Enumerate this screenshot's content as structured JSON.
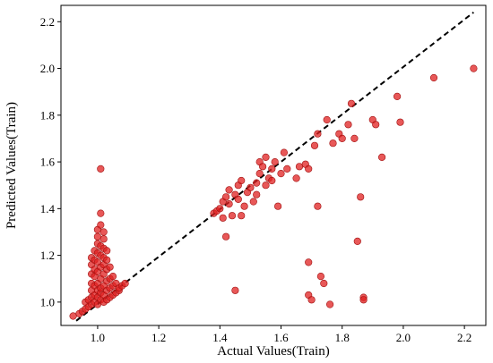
{
  "chart_data": {
    "type": "scatter",
    "xlabel": "Actual Values(Train)",
    "ylabel": "Predicted Values(Train)",
    "xlim": [
      0.88,
      2.27
    ],
    "ylim": [
      0.9,
      2.27
    ],
    "x_ticks": [
      1.0,
      1.2,
      1.4,
      1.6,
      1.8,
      2.0,
      2.2
    ],
    "y_ticks": [
      1.0,
      1.2,
      1.4,
      1.6,
      1.8,
      2.0,
      2.2
    ],
    "grid": false,
    "marker_color": "#e02020",
    "marker_edge_color": "#a01010",
    "reference_line": {
      "style": "dashed",
      "color": "#000000",
      "x": [
        0.93,
        2.23
      ],
      "y": [
        0.92,
        2.24
      ]
    },
    "series": [
      {
        "points": [
          [
            0.92,
            0.94
          ],
          [
            0.94,
            0.95
          ],
          [
            0.95,
            0.96
          ],
          [
            0.96,
            0.97
          ],
          [
            0.96,
            1.0
          ],
          [
            0.97,
            0.98
          ],
          [
            0.97,
            1.01
          ],
          [
            0.98,
            0.99
          ],
          [
            0.98,
            1.02
          ],
          [
            0.98,
            1.05
          ],
          [
            0.98,
            1.08
          ],
          [
            0.98,
            1.12
          ],
          [
            0.98,
            1.16
          ],
          [
            0.98,
            1.19
          ],
          [
            0.99,
            1.0
          ],
          [
            0.99,
            1.03
          ],
          [
            0.99,
            1.07
          ],
          [
            0.99,
            1.11
          ],
          [
            0.99,
            1.14
          ],
          [
            0.99,
            1.18
          ],
          [
            0.99,
            1.22
          ],
          [
            1.0,
            0.99
          ],
          [
            1.0,
            1.02
          ],
          [
            1.0,
            1.05
          ],
          [
            1.0,
            1.08
          ],
          [
            1.0,
            1.13
          ],
          [
            1.0,
            1.17
          ],
          [
            1.0,
            1.21
          ],
          [
            1.0,
            1.25
          ],
          [
            1.0,
            1.28
          ],
          [
            1.0,
            1.31
          ],
          [
            1.01,
            1.01
          ],
          [
            1.01,
            1.04
          ],
          [
            1.01,
            1.06
          ],
          [
            1.01,
            1.1
          ],
          [
            1.01,
            1.15
          ],
          [
            1.01,
            1.2
          ],
          [
            1.01,
            1.24
          ],
          [
            1.01,
            1.33
          ],
          [
            1.01,
            1.38
          ],
          [
            1.01,
            1.57
          ],
          [
            1.02,
            1.0
          ],
          [
            1.02,
            1.03
          ],
          [
            1.02,
            1.07
          ],
          [
            1.02,
            1.12
          ],
          [
            1.02,
            1.16
          ],
          [
            1.02,
            1.19
          ],
          [
            1.02,
            1.23
          ],
          [
            1.02,
            1.27
          ],
          [
            1.02,
            1.3
          ],
          [
            1.03,
            1.01
          ],
          [
            1.03,
            1.05
          ],
          [
            1.03,
            1.09
          ],
          [
            1.03,
            1.14
          ],
          [
            1.03,
            1.18
          ],
          [
            1.03,
            1.22
          ],
          [
            1.04,
            1.02
          ],
          [
            1.04,
            1.06
          ],
          [
            1.04,
            1.1
          ],
          [
            1.04,
            1.15
          ],
          [
            1.05,
            1.03
          ],
          [
            1.05,
            1.07
          ],
          [
            1.05,
            1.11
          ],
          [
            1.06,
            1.04
          ],
          [
            1.06,
            1.08
          ],
          [
            1.07,
            1.05
          ],
          [
            1.07,
            1.06
          ],
          [
            1.08,
            1.07
          ],
          [
            1.09,
            1.08
          ],
          [
            1.38,
            1.38
          ],
          [
            1.39,
            1.39
          ],
          [
            1.4,
            1.4
          ],
          [
            1.41,
            1.43
          ],
          [
            1.41,
            1.36
          ],
          [
            1.42,
            1.45
          ],
          [
            1.42,
            1.28
          ],
          [
            1.43,
            1.48
          ],
          [
            1.43,
            1.42
          ],
          [
            1.44,
            1.37
          ],
          [
            1.45,
            1.46
          ],
          [
            1.45,
            1.05
          ],
          [
            1.46,
            1.44
          ],
          [
            1.46,
            1.5
          ],
          [
            1.47,
            1.52
          ],
          [
            1.47,
            1.37
          ],
          [
            1.48,
            1.41
          ],
          [
            1.49,
            1.47
          ],
          [
            1.5,
            1.49
          ],
          [
            1.51,
            1.43
          ],
          [
            1.52,
            1.51
          ],
          [
            1.52,
            1.46
          ],
          [
            1.53,
            1.6
          ],
          [
            1.53,
            1.55
          ],
          [
            1.54,
            1.58
          ],
          [
            1.55,
            1.5
          ],
          [
            1.55,
            1.62
          ],
          [
            1.56,
            1.53
          ],
          [
            1.57,
            1.57
          ],
          [
            1.57,
            1.52
          ],
          [
            1.58,
            1.6
          ],
          [
            1.59,
            1.41
          ],
          [
            1.6,
            1.55
          ],
          [
            1.61,
            1.64
          ],
          [
            1.62,
            1.57
          ],
          [
            1.65,
            1.53
          ],
          [
            1.66,
            1.58
          ],
          [
            1.68,
            1.59
          ],
          [
            1.69,
            1.57
          ],
          [
            1.69,
            1.17
          ],
          [
            1.69,
            1.03
          ],
          [
            1.7,
            1.01
          ],
          [
            1.71,
            1.67
          ],
          [
            1.72,
            1.72
          ],
          [
            1.72,
            1.41
          ],
          [
            1.73,
            1.11
          ],
          [
            1.74,
            1.08
          ],
          [
            1.75,
            1.78
          ],
          [
            1.76,
            0.99
          ],
          [
            1.77,
            1.68
          ],
          [
            1.79,
            1.72
          ],
          [
            1.8,
            1.7
          ],
          [
            1.82,
            1.76
          ],
          [
            1.83,
            1.85
          ],
          [
            1.84,
            1.7
          ],
          [
            1.85,
            1.26
          ],
          [
            1.86,
            1.45
          ],
          [
            1.87,
            1.02
          ],
          [
            1.87,
            1.01
          ],
          [
            1.9,
            1.78
          ],
          [
            1.91,
            1.76
          ],
          [
            1.93,
            1.62
          ],
          [
            1.98,
            1.88
          ],
          [
            1.99,
            1.77
          ],
          [
            2.1,
            1.96
          ],
          [
            2.23,
            2.0
          ]
        ]
      }
    ]
  }
}
